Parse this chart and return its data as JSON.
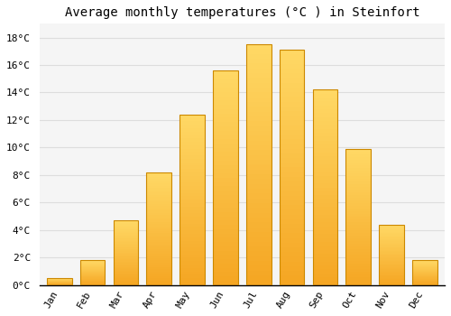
{
  "title": "Average monthly temperatures (°C ) in Steinfort",
  "months": [
    "Jan",
    "Feb",
    "Mar",
    "Apr",
    "May",
    "Jun",
    "Jul",
    "Aug",
    "Sep",
    "Oct",
    "Nov",
    "Dec"
  ],
  "values": [
    0.5,
    1.8,
    4.7,
    8.2,
    12.4,
    15.6,
    17.5,
    17.1,
    14.2,
    9.9,
    4.4,
    1.8
  ],
  "bar_color_bottom": "#F5A623",
  "bar_color_top": "#FFD966",
  "bar_edge_color": "#CC8800",
  "background_color": "#FFFFFF",
  "plot_bg_color": "#F5F5F5",
  "grid_color": "#DDDDDD",
  "ylim": [
    0,
    19
  ],
  "yticks": [
    0,
    2,
    4,
    6,
    8,
    10,
    12,
    14,
    16,
    18
  ],
  "ytick_labels": [
    "0°C",
    "2°C",
    "4°C",
    "6°C",
    "8°C",
    "10°C",
    "12°C",
    "14°C",
    "16°C",
    "18°C"
  ],
  "title_fontsize": 10,
  "tick_fontsize": 8,
  "tick_font_family": "monospace",
  "bar_width": 0.75
}
